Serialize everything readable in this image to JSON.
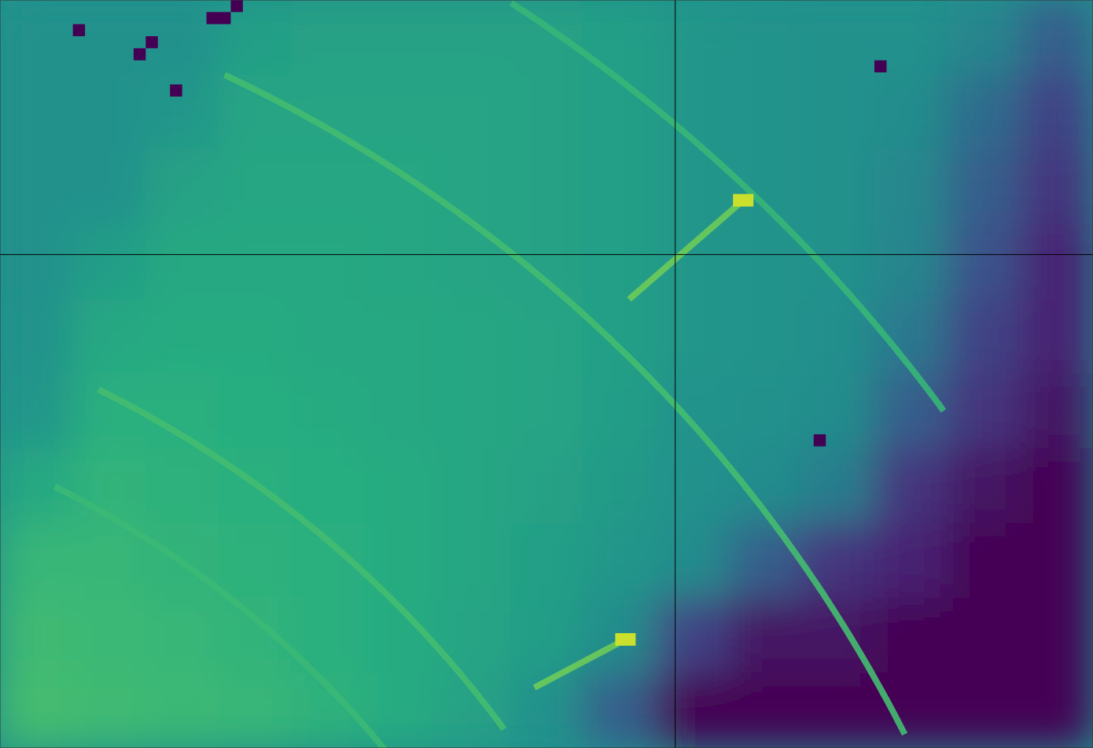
{
  "chart_data": {
    "type": "heatmap",
    "xlim": [
      0,
      90
    ],
    "ylim": [
      0,
      62
    ],
    "tick_labels": false,
    "grid": false,
    "color_range": [
      0,
      1
    ],
    "cells": [
      [
        0.5,
        0.5,
        0.5,
        0.56,
        0.57,
        0.57,
        0.57,
        0.57,
        0.56,
        0.52,
        0.51,
        0.5,
        0.5,
        0.45,
        0.3
      ],
      [
        0.5,
        0.5,
        0.52,
        0.58,
        0.58,
        0.58,
        0.58,
        0.57,
        0.56,
        0.52,
        0.51,
        0.5,
        0.48,
        0.35,
        0.2
      ],
      [
        0.5,
        0.5,
        0.57,
        0.59,
        0.59,
        0.59,
        0.58,
        0.57,
        0.56,
        0.52,
        0.51,
        0.5,
        0.46,
        0.3,
        0.15
      ],
      [
        0.5,
        0.55,
        0.6,
        0.6,
        0.6,
        0.59,
        0.58,
        0.57,
        0.56,
        0.52,
        0.51,
        0.5,
        0.45,
        0.25,
        0.1
      ],
      [
        0.51,
        0.6,
        0.61,
        0.61,
        0.6,
        0.6,
        0.59,
        0.58,
        0.56,
        0.52,
        0.51,
        0.49,
        0.4,
        0.2,
        0.1
      ],
      [
        0.52,
        0.63,
        0.63,
        0.62,
        0.61,
        0.6,
        0.59,
        0.58,
        0.55,
        0.51,
        0.5,
        0.48,
        0.3,
        0.15,
        0.05
      ],
      [
        0.6,
        0.65,
        0.64,
        0.63,
        0.62,
        0.61,
        0.59,
        0.57,
        0.54,
        0.5,
        0.48,
        0.42,
        0.15,
        0.05,
        0.0
      ],
      [
        0.66,
        0.66,
        0.65,
        0.64,
        0.63,
        0.61,
        0.59,
        0.56,
        0.52,
        0.48,
        0.3,
        0.15,
        0.1,
        0.0,
        0.0
      ],
      [
        0.68,
        0.67,
        0.66,
        0.65,
        0.63,
        0.61,
        0.58,
        0.55,
        0.48,
        0.2,
        0.05,
        0.05,
        0.0,
        0.0,
        0.0
      ],
      [
        0.69,
        0.68,
        0.67,
        0.66,
        0.64,
        0.61,
        0.57,
        0.5,
        0.3,
        0.0,
        0.0,
        0.0,
        0.0,
        0.0,
        0.0
      ]
    ],
    "arcs": [
      {
        "cx": -33.4,
        "cy": 115.4,
        "r": 137.7,
        "x_start": 42.1,
        "x_end": 77.7,
        "intensity": 0.66
      },
      {
        "cx": -33.4,
        "cy": 115.4,
        "r": 120.9,
        "x_start": 18.5,
        "x_end": 74.5,
        "intensity": 0.69
      },
      {
        "cx": -33.4,
        "cy": 115.4,
        "r": 92.9,
        "x_start": 8.1,
        "x_end": 41.5,
        "intensity": 0.69
      },
      {
        "cx": -33.4,
        "cy": 115.4,
        "r": 84.1,
        "x_start": 4.5,
        "x_end": 31.7,
        "intensity": 0.67
      }
    ],
    "streaks": [
      {
        "x": [
          51.8,
          61.2
        ],
        "y": [
          24.8,
          16.6
        ],
        "intensity": 0.78,
        "tip_intensity": 0.92
      },
      {
        "x": [
          44.0,
          51.5
        ],
        "y": [
          57.0,
          53.0
        ],
        "intensity": 0.78,
        "tip_intensity": 0.92
      }
    ],
    "dead_pixels": [
      [
        6,
        2
      ],
      [
        17,
        1
      ],
      [
        18,
        1
      ],
      [
        19,
        0
      ],
      [
        11,
        4
      ],
      [
        12,
        3
      ],
      [
        14,
        7
      ],
      [
        72,
        5
      ],
      [
        67,
        36
      ]
    ],
    "crosshair": {
      "x": 55.6,
      "y": 21.1
    }
  }
}
